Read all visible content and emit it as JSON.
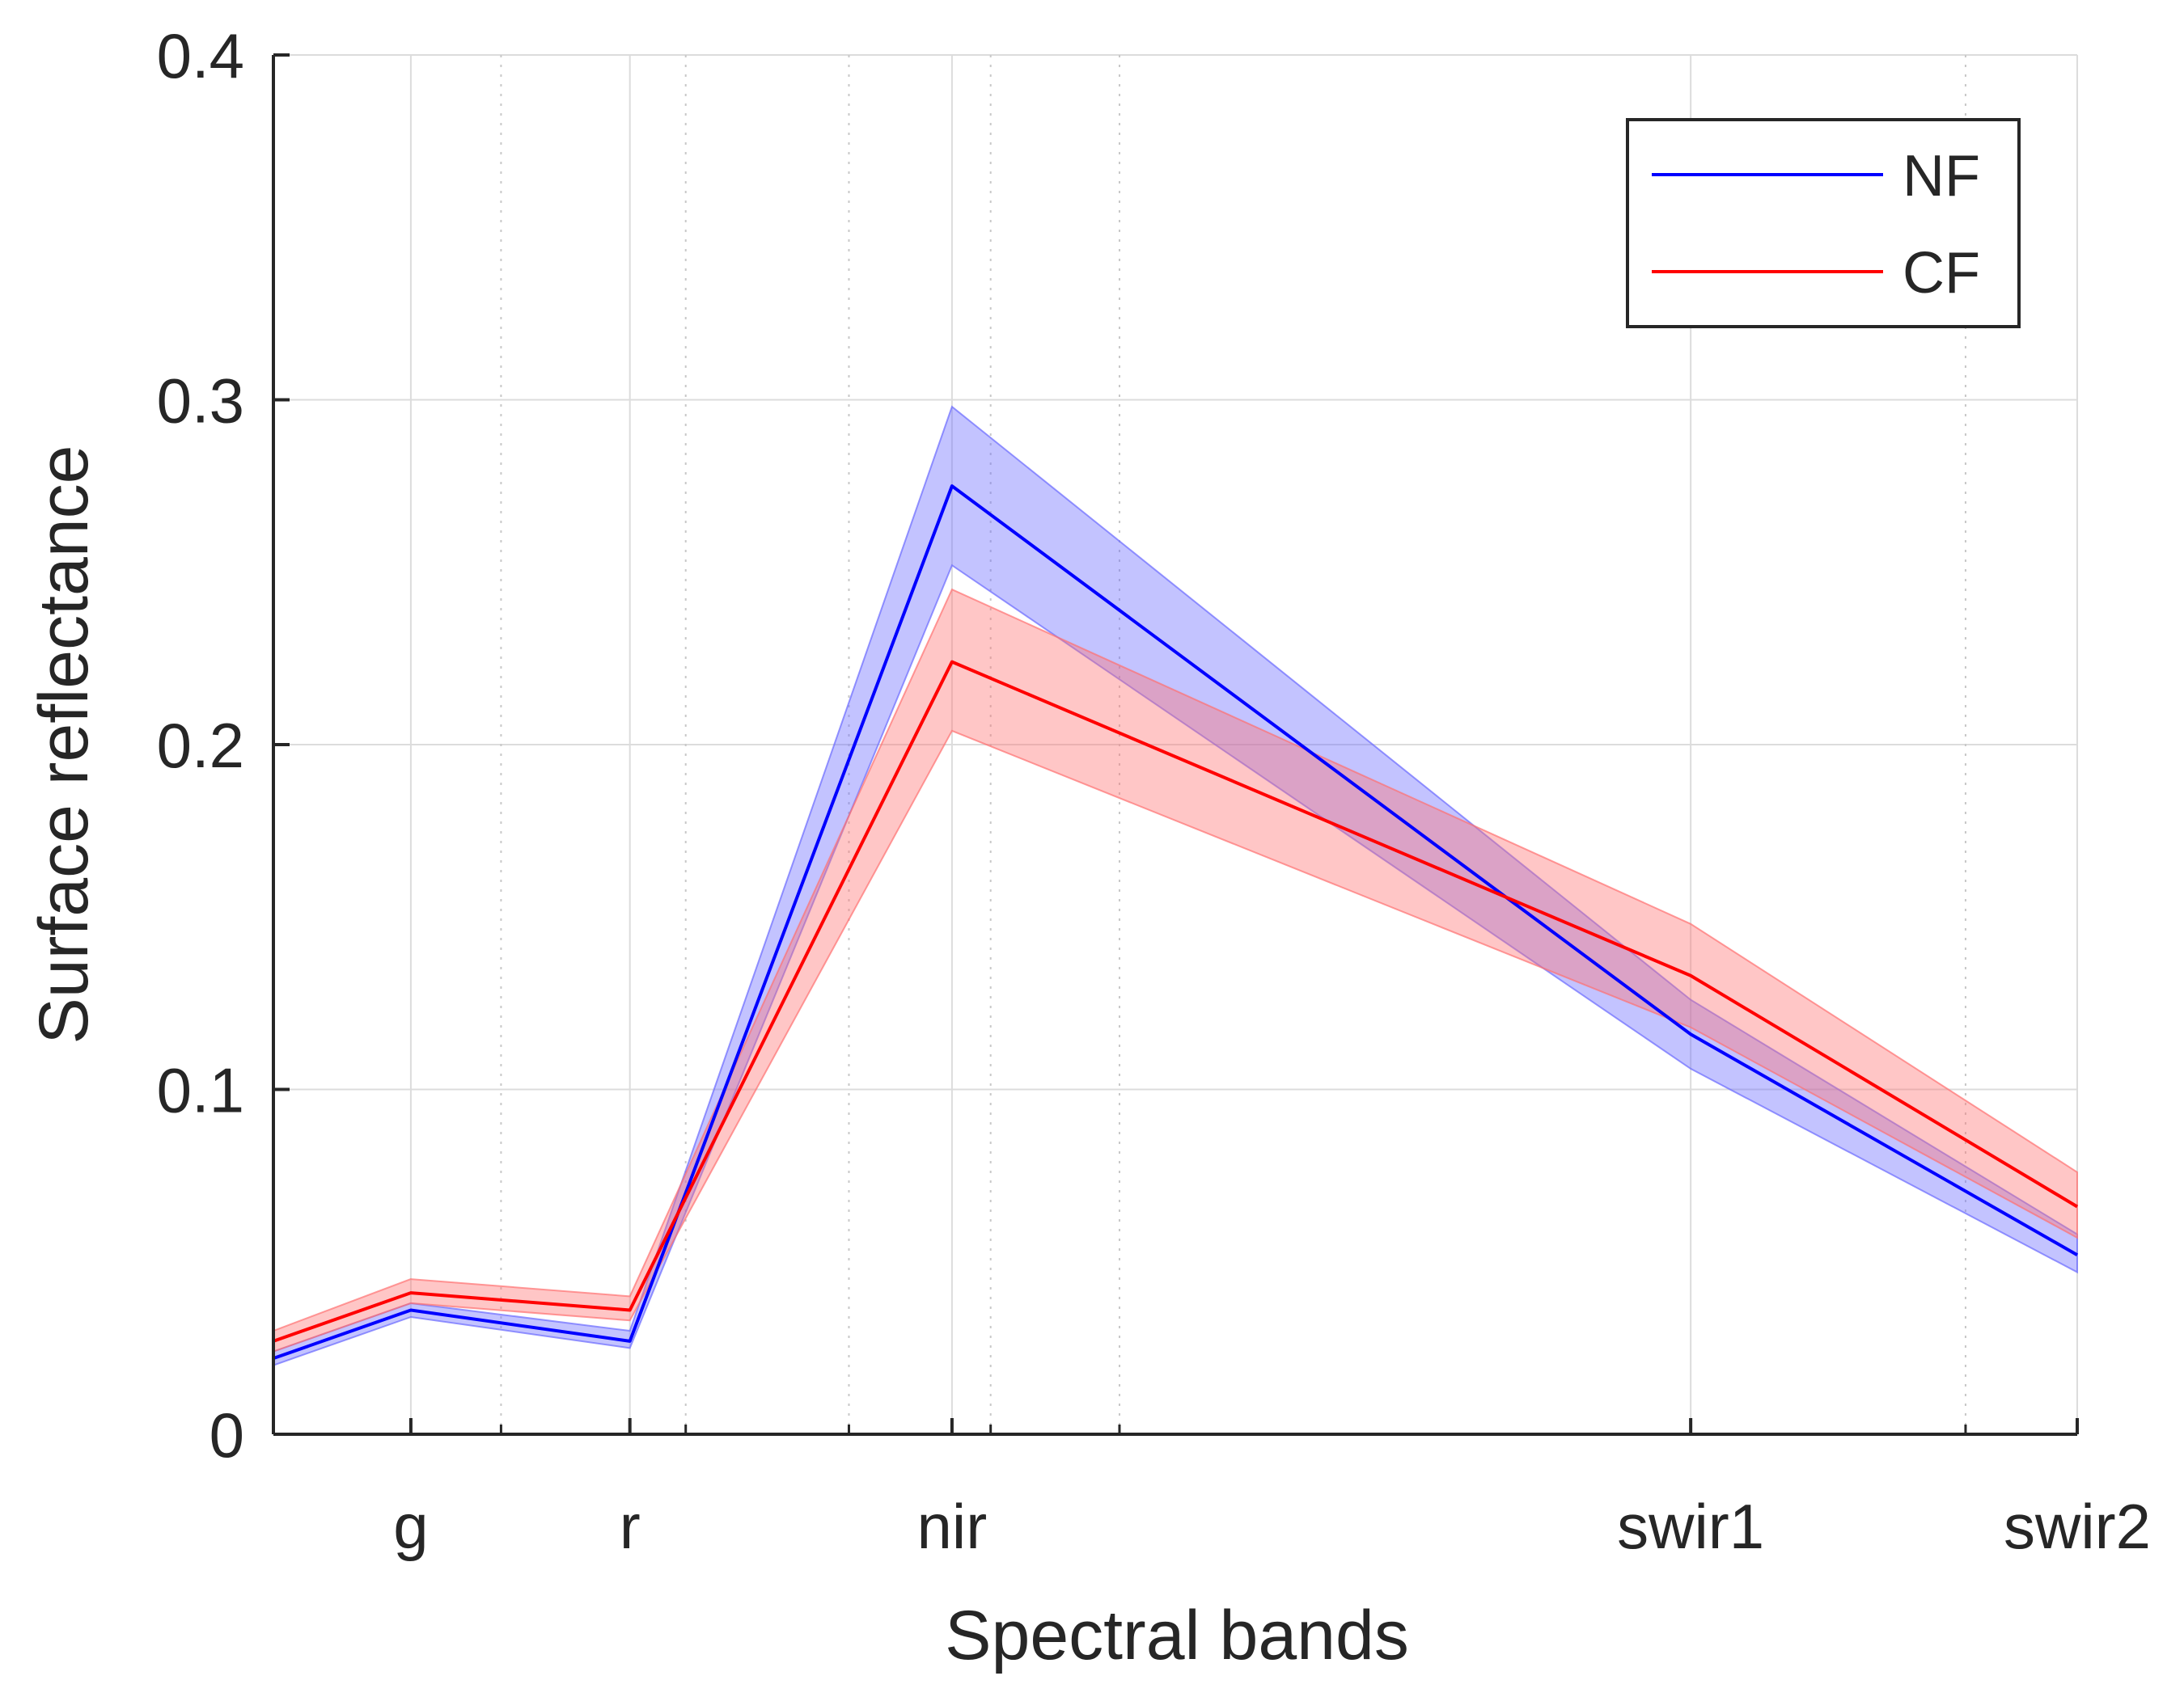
{
  "chart_data": {
    "type": "line",
    "title": "",
    "xlabel": "Spectral bands",
    "ylabel": "Surface reflectance",
    "xlim": [
      0.3,
      2.4
    ],
    "ylim": [
      0,
      0.4
    ],
    "grid": true,
    "legend_position": "top-right",
    "yticks": [
      {
        "value": 0,
        "label": "0"
      },
      {
        "value": 0.1,
        "label": "0.1"
      },
      {
        "value": 0.2,
        "label": "0.2"
      },
      {
        "value": 0.3,
        "label": "0.3"
      },
      {
        "value": 0.4,
        "label": "0.4"
      }
    ],
    "xticks": [
      {
        "value": 0.46,
        "label": "g"
      },
      {
        "value": 0.715,
        "label": "r"
      },
      {
        "value": 1.09,
        "label": "nir"
      },
      {
        "value": 1.95,
        "label": "swir1"
      },
      {
        "value": 2.4,
        "label": "swir2"
      }
    ],
    "minor_x_gridlines": [
      0.565,
      0.78,
      0.97,
      1.135,
      1.285,
      2.27
    ],
    "x": [
      0.3,
      0.46,
      0.715,
      1.09,
      1.95,
      2.4
    ],
    "series": [
      {
        "name": "NF",
        "color": "#0000ff",
        "fill": "#6a6aff",
        "values": [
          0.022,
          0.036,
          0.027,
          0.275,
          0.116,
          0.052
        ],
        "lower": [
          0.02,
          0.034,
          0.025,
          0.252,
          0.106,
          0.047
        ],
        "upper": [
          0.024,
          0.038,
          0.03,
          0.298,
          0.126,
          0.058
        ]
      },
      {
        "name": "CF",
        "color": "#ff0000",
        "fill": "#ff7070",
        "values": [
          0.027,
          0.041,
          0.036,
          0.224,
          0.133,
          0.066
        ],
        "lower": [
          0.024,
          0.038,
          0.033,
          0.204,
          0.118,
          0.057
        ],
        "upper": [
          0.03,
          0.045,
          0.04,
          0.245,
          0.148,
          0.076
        ]
      }
    ]
  }
}
